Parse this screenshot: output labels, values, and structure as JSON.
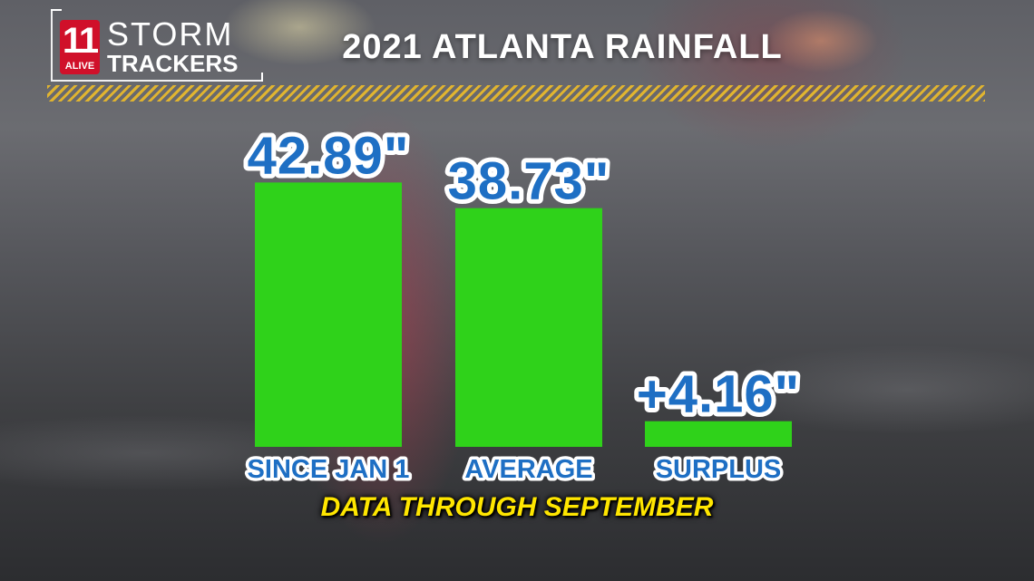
{
  "logo": {
    "number": "11",
    "alive": "ALIVE",
    "line1": "STORM",
    "line2": "TRACKERS"
  },
  "title": "2021 ATLANTA RAINFALL",
  "footnote": "DATA THROUGH SEPTEMBER",
  "chart_data": {
    "type": "bar",
    "title": "2021 ATLANTA RAINFALL",
    "categories": [
      "SINCE JAN 1",
      "AVERAGE",
      "SURPLUS"
    ],
    "values": [
      42.89,
      38.73,
      4.16
    ],
    "value_labels": [
      "42.89\"",
      "38.73\"",
      "+4.16\""
    ],
    "bar_color": "#2fd21a",
    "label_color": "#1e6fc4",
    "grid": false,
    "legend": "none"
  }
}
